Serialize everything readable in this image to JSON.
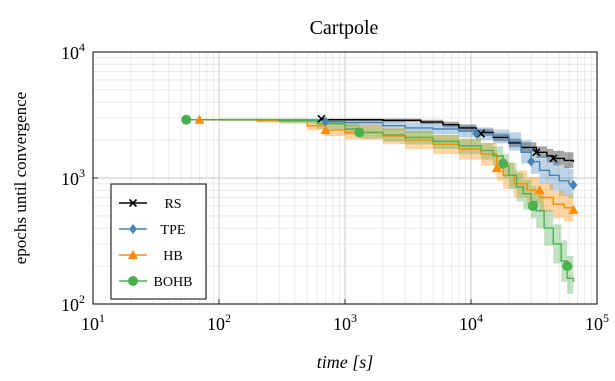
{
  "chart_data": {
    "type": "line",
    "title": "Cartpole",
    "xlabel": "time [s]",
    "ylabel": "epochs until convergence",
    "xscale": "log",
    "yscale": "log",
    "xlim": [
      10,
      100000
    ],
    "ylim": [
      100,
      10000
    ],
    "x_ticks": [
      {
        "value": 10,
        "base": "10",
        "exp": "1"
      },
      {
        "value": 100,
        "base": "10",
        "exp": "2"
      },
      {
        "value": 1000,
        "base": "10",
        "exp": "3"
      },
      {
        "value": 10000,
        "base": "10",
        "exp": "4"
      },
      {
        "value": 100000,
        "base": "10",
        "exp": "5"
      }
    ],
    "y_ticks": [
      {
        "value": 100,
        "base": "10",
        "exp": "2"
      },
      {
        "value": 1000,
        "base": "10",
        "exp": "3"
      },
      {
        "value": 10000,
        "base": "10",
        "exp": "4"
      }
    ],
    "grid": true,
    "legend_position": "bottom-left",
    "series": [
      {
        "name": "RS",
        "color": "#000000",
        "marker": "x",
        "x": [
          650,
          700,
          1000,
          2000,
          4000,
          6000,
          8000,
          11000,
          15000,
          20000,
          25000,
          33000,
          40000,
          45000,
          55000,
          65000
        ],
        "y": [
          2950,
          2900,
          2900,
          2870,
          2780,
          2650,
          2500,
          2300,
          2100,
          1900,
          1750,
          1600,
          1500,
          1430,
          1380,
          1340
        ],
        "lower": [
          2950,
          2850,
          2820,
          2780,
          2680,
          2520,
          2360,
          2160,
          1960,
          1760,
          1600,
          1440,
          1330,
          1260,
          1200,
          1180
        ],
        "upper": [
          2950,
          2950,
          2960,
          2960,
          2900,
          2800,
          2660,
          2460,
          2260,
          2060,
          1920,
          1780,
          1700,
          1640,
          1600,
          1560
        ],
        "markers_x": [
          650,
          12000,
          33000,
          45000
        ],
        "markers_y": [
          2950,
          2250,
          1600,
          1430
        ]
      },
      {
        "name": "TPE",
        "color": "#4682b4",
        "marker": "diamond",
        "x": [
          55,
          100,
          300,
          700,
          1000,
          2000,
          3000,
          5000,
          8000,
          11000,
          15000,
          20000,
          25000,
          30000,
          35000,
          42000,
          50000,
          60000,
          65000
        ],
        "y": [
          2900,
          2900,
          2880,
          2800,
          2750,
          2600,
          2500,
          2450,
          2350,
          2250,
          2150,
          1950,
          1600,
          1350,
          1150,
          1050,
          950,
          900,
          880
        ],
        "lower": [
          2900,
          2850,
          2800,
          2650,
          2550,
          2400,
          2280,
          2220,
          2100,
          2000,
          1880,
          1650,
          1300,
          1080,
          900,
          800,
          720,
          690,
          680
        ],
        "upper": [
          2900,
          2950,
          2950,
          2950,
          2950,
          2850,
          2750,
          2700,
          2620,
          2520,
          2420,
          2300,
          2000,
          1720,
          1500,
          1380,
          1250,
          1180,
          1160
        ],
        "markers_x": [
          55,
          700,
          11000,
          30000,
          65000
        ],
        "markers_y": [
          2900,
          2800,
          2250,
          1350,
          880
        ]
      },
      {
        "name": "HB",
        "color": "#ff8c00",
        "marker": "triangle",
        "x": [
          55,
          70,
          200,
          500,
          700,
          1000,
          2000,
          3000,
          5000,
          8000,
          12000,
          16000,
          18000,
          22000,
          28000,
          35000,
          45000,
          55000,
          65000
        ],
        "y": [
          2900,
          2900,
          2850,
          2600,
          2400,
          2300,
          2150,
          2000,
          1850,
          1700,
          1550,
          1200,
          1050,
          900,
          800,
          700,
          620,
          580,
          560
        ],
        "lower": [
          2900,
          2850,
          2750,
          2400,
          2150,
          2020,
          1850,
          1700,
          1550,
          1400,
          1250,
          950,
          820,
          700,
          620,
          540,
          480,
          450,
          440
        ],
        "upper": [
          2900,
          2950,
          2950,
          2850,
          2700,
          2650,
          2500,
          2350,
          2200,
          2050,
          1900,
          1500,
          1330,
          1150,
          1020,
          900,
          790,
          740,
          720
        ],
        "markers_x": [
          70,
          700,
          16000,
          35000,
          65000
        ],
        "markers_y": [
          2900,
          2400,
          1200,
          800,
          560
        ]
      },
      {
        "name": "BOHB",
        "color": "#4caf50",
        "marker": "circle",
        "x": [
          55,
          100,
          300,
          600,
          1000,
          1300,
          2000,
          3000,
          5000,
          8000,
          12000,
          15000,
          18000,
          20000,
          23000,
          26000,
          30000,
          33000,
          38000,
          45000,
          52000,
          58000,
          65000
        ],
        "y": [
          2900,
          2900,
          2850,
          2700,
          2450,
          2300,
          2200,
          2100,
          1950,
          1800,
          1650,
          1500,
          1250,
          1050,
          850,
          750,
          650,
          550,
          400,
          300,
          220,
          160,
          150
        ],
        "lower": [
          2900,
          2850,
          2700,
          2450,
          2200,
          2050,
          1950,
          1850,
          1700,
          1550,
          1400,
          1250,
          1000,
          820,
          650,
          560,
          480,
          400,
          290,
          210,
          150,
          120,
          115
        ],
        "upper": [
          2900,
          2950,
          2950,
          2900,
          2700,
          2550,
          2450,
          2350,
          2200,
          2050,
          1900,
          1780,
          1550,
          1320,
          1100,
          970,
          860,
          740,
          560,
          430,
          320,
          240,
          220
        ],
        "markers_x": [
          55,
          1300,
          18000,
          31000,
          58000
        ],
        "markers_y": [
          2900,
          2300,
          1300,
          600,
          200
        ]
      }
    ]
  }
}
